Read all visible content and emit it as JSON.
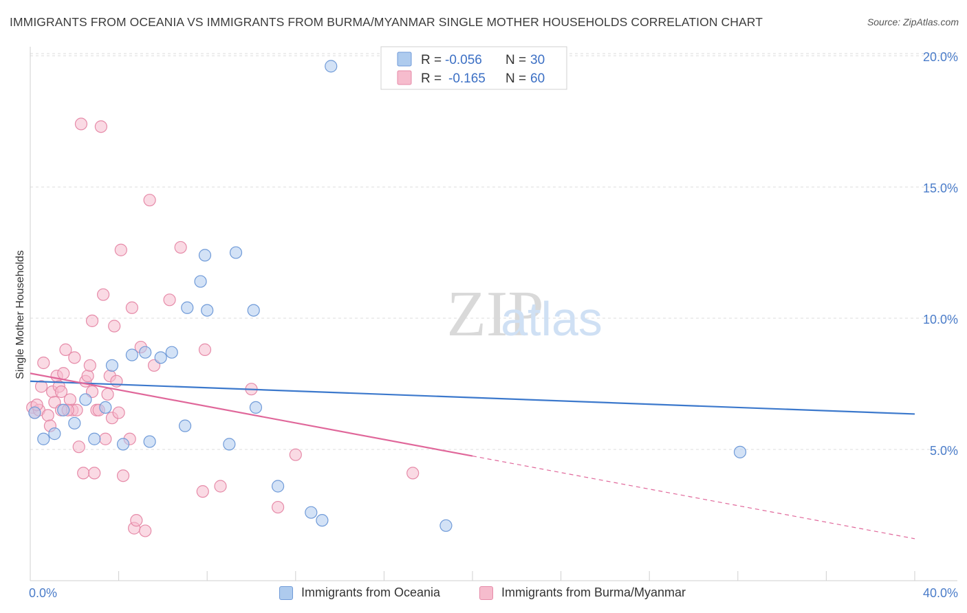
{
  "title": "IMMIGRANTS FROM OCEANIA VS IMMIGRANTS FROM BURMA/MYANMAR SINGLE MOTHER HOUSEHOLDS CORRELATION CHART",
  "source": "Source: ZipAtlas.com",
  "watermark": {
    "zip": "ZIP",
    "atlas": "atlas"
  },
  "colors": {
    "blue_fill": "#aecbee",
    "blue_stroke": "#6f9ad8",
    "blue_line": "#3b78cc",
    "pink_fill": "#f6bccd",
    "pink_stroke": "#e68aa8",
    "pink_line": "#e0679a",
    "axis_text": "#4a7cc9",
    "grid": "#dddddd"
  },
  "legend": {
    "entries": [
      {
        "r_label": "R =",
        "r_value": "-0.056",
        "n_label": "N =",
        "n_value": "30"
      },
      {
        "r_label": "R =",
        "r_value": "-0.165",
        "n_label": "N =",
        "n_value": "60"
      }
    ]
  },
  "bottom_legend": [
    "Immigrants from Oceania",
    "Immigrants from Burma/Myanmar"
  ],
  "chart_data": {
    "type": "scatter",
    "ylabel": "Single Mother Households",
    "xlabel": "",
    "xlim": [
      0,
      40
    ],
    "ylim": [
      0,
      20.5
    ],
    "x_tick_labels": [
      "0.0%",
      "40.0%"
    ],
    "y_ticks": [
      5,
      10,
      15,
      20
    ],
    "y_tick_labels": [
      "5.0%",
      "10.0%",
      "15.0%",
      "20.0%"
    ],
    "grid": true,
    "legend_position": "top-center",
    "series": [
      {
        "name": "Immigrants from Oceania",
        "r": -0.056,
        "n": 30,
        "trend": {
          "x0": 0,
          "y0": 7.6,
          "x1": 40,
          "y1": 6.35,
          "dashed_from": null
        },
        "points": [
          [
            0.2,
            6.4
          ],
          [
            0.6,
            5.4
          ],
          [
            1.1,
            5.6
          ],
          [
            1.5,
            6.5
          ],
          [
            2.0,
            6.0
          ],
          [
            2.5,
            6.9
          ],
          [
            2.9,
            5.4
          ],
          [
            3.4,
            6.6
          ],
          [
            3.7,
            8.2
          ],
          [
            4.2,
            5.2
          ],
          [
            4.6,
            8.6
          ],
          [
            5.2,
            8.7
          ],
          [
            5.4,
            5.3
          ],
          [
            5.9,
            8.5
          ],
          [
            6.4,
            8.7
          ],
          [
            7.0,
            5.9
          ],
          [
            7.1,
            10.4
          ],
          [
            8.0,
            10.3
          ],
          [
            7.9,
            12.4
          ],
          [
            7.7,
            11.4
          ],
          [
            9.0,
            5.2
          ],
          [
            9.3,
            12.5
          ],
          [
            10.1,
            10.3
          ],
          [
            10.2,
            6.6
          ],
          [
            11.2,
            3.6
          ],
          [
            12.7,
            2.6
          ],
          [
            13.2,
            2.3
          ],
          [
            13.6,
            19.6
          ],
          [
            18.8,
            2.1
          ],
          [
            32.1,
            4.9
          ]
        ]
      },
      {
        "name": "Immigrants from Burma/Myanmar",
        "r": -0.165,
        "n": 60,
        "trend": {
          "x0": 0,
          "y0": 7.9,
          "x1": 40,
          "y1": 1.6,
          "dashed_from": 20
        },
        "points": [
          [
            0.1,
            6.6
          ],
          [
            0.2,
            6.4
          ],
          [
            0.4,
            6.5
          ],
          [
            0.5,
            7.4
          ],
          [
            0.6,
            8.3
          ],
          [
            0.8,
            6.3
          ],
          [
            0.9,
            5.9
          ],
          [
            1.0,
            7.2
          ],
          [
            1.1,
            6.8
          ],
          [
            1.2,
            7.8
          ],
          [
            1.3,
            7.4
          ],
          [
            1.4,
            7.2
          ],
          [
            1.4,
            6.5
          ],
          [
            1.5,
            7.9
          ],
          [
            1.6,
            8.8
          ],
          [
            1.8,
            6.9
          ],
          [
            1.9,
            6.5
          ],
          [
            2.0,
            8.5
          ],
          [
            2.1,
            6.5
          ],
          [
            2.2,
            5.1
          ],
          [
            2.3,
            17.4
          ],
          [
            2.4,
            4.1
          ],
          [
            2.5,
            7.6
          ],
          [
            2.6,
            7.8
          ],
          [
            2.7,
            8.2
          ],
          [
            2.8,
            7.2
          ],
          [
            2.8,
            9.9
          ],
          [
            2.9,
            4.1
          ],
          [
            3.0,
            6.5
          ],
          [
            3.1,
            6.5
          ],
          [
            3.2,
            17.3
          ],
          [
            3.3,
            10.9
          ],
          [
            3.4,
            5.4
          ],
          [
            3.5,
            7.1
          ],
          [
            3.6,
            7.8
          ],
          [
            3.7,
            6.2
          ],
          [
            3.8,
            9.7
          ],
          [
            3.9,
            7.6
          ],
          [
            4.0,
            6.4
          ],
          [
            4.1,
            12.6
          ],
          [
            4.2,
            4.0
          ],
          [
            4.5,
            5.4
          ],
          [
            4.6,
            10.4
          ],
          [
            4.7,
            2.0
          ],
          [
            4.8,
            2.3
          ],
          [
            5.0,
            8.9
          ],
          [
            5.2,
            1.9
          ],
          [
            5.4,
            14.5
          ],
          [
            5.6,
            8.2
          ],
          [
            6.3,
            10.7
          ],
          [
            6.8,
            12.7
          ],
          [
            7.8,
            3.4
          ],
          [
            7.9,
            8.8
          ],
          [
            8.6,
            3.6
          ],
          [
            10.0,
            7.3
          ],
          [
            11.2,
            2.8
          ],
          [
            12.0,
            4.8
          ],
          [
            17.3,
            4.1
          ],
          [
            0.3,
            6.7
          ],
          [
            1.7,
            6.5
          ]
        ]
      }
    ]
  }
}
